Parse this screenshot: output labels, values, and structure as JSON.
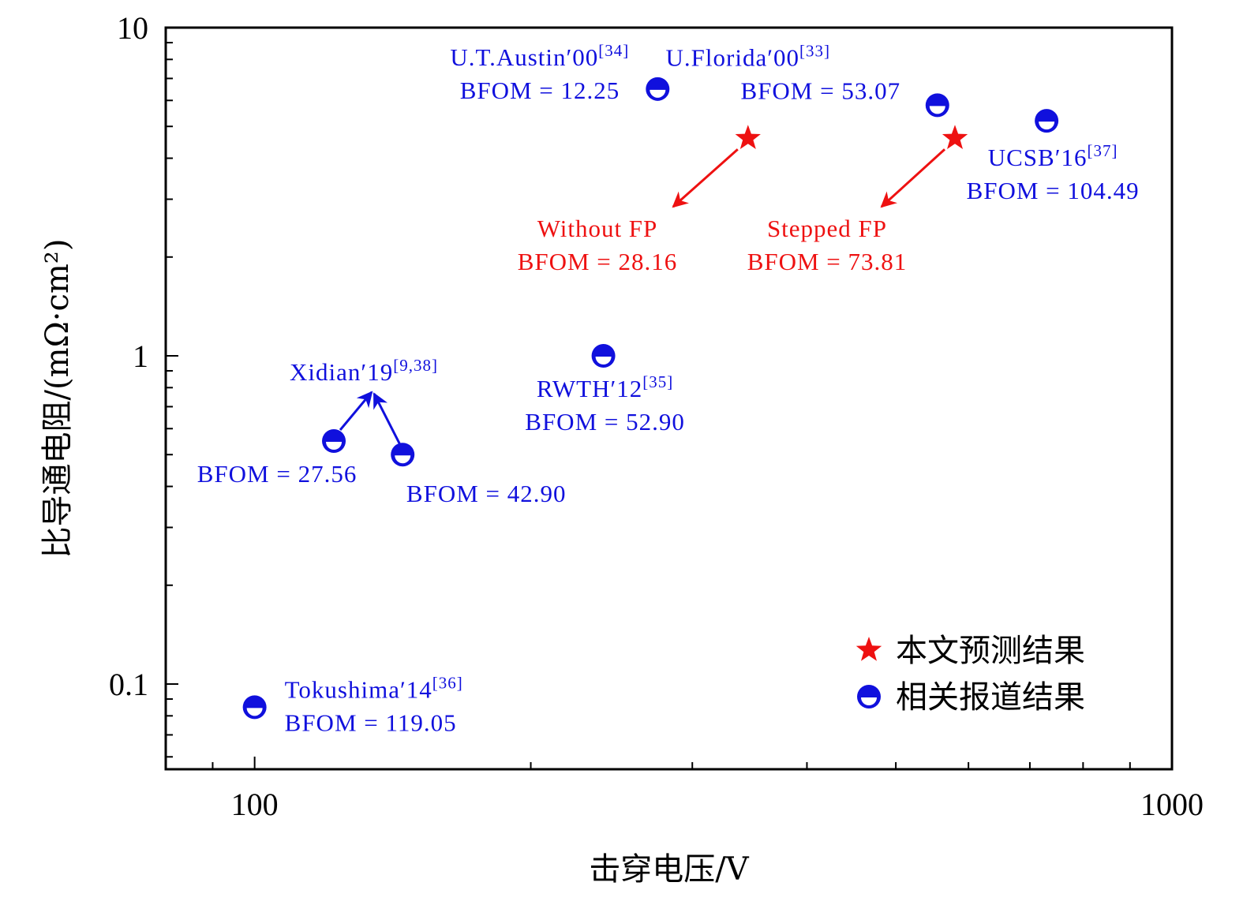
{
  "chart_data": {
    "type": "scatter",
    "xlabel": "击穿电压/V",
    "ylabel": "比导通电阻/(mΩ·cm²)",
    "x_scale": "log",
    "y_scale": "log",
    "xlim": [
      80,
      1000
    ],
    "ylim": [
      0.055,
      10
    ],
    "x_ticks": [
      {
        "value": 100,
        "label": "100"
      },
      {
        "value": 1000,
        "label": "1000"
      }
    ],
    "y_ticks": [
      {
        "value": 0.1,
        "label": "0.1"
      },
      {
        "value": 1,
        "label": "1"
      },
      {
        "value": 10,
        "label": "10"
      }
    ],
    "grid": false,
    "legend_position": "bottom-right",
    "series": [
      {
        "name": "本文预测结果",
        "marker": "star",
        "color": "#ee1111",
        "points": [
          {
            "x": 345,
            "y": 4.6,
            "label": "Without FP",
            "bfom": "BFOM = 28.16"
          },
          {
            "x": 580,
            "y": 4.6,
            "label": "Stepped FP",
            "bfom": "BFOM = 73.81"
          }
        ]
      },
      {
        "name": "相关报道结果",
        "marker": "half-filled-circle",
        "color": "#1010dd",
        "points": [
          {
            "x": 275,
            "y": 6.5,
            "label": "U.T.Austin′00",
            "ref": "[34]",
            "bfom": "BFOM = 12.25"
          },
          {
            "x": 555,
            "y": 5.8,
            "label": "U.Florida′00",
            "ref": "[33]",
            "bfom": "BFOM = 53.07"
          },
          {
            "x": 730,
            "y": 5.2,
            "label": "UCSB′16",
            "ref": "[37]",
            "bfom": "BFOM = 104.49"
          },
          {
            "x": 240,
            "y": 1.0,
            "label": "RWTH′12",
            "ref": "[35]",
            "bfom": "BFOM = 52.90"
          },
          {
            "x": 122,
            "y": 0.55,
            "label": "",
            "ref": "",
            "bfom": "BFOM = 27.56"
          },
          {
            "x": 145,
            "y": 0.5,
            "label": "",
            "ref": "",
            "bfom": "BFOM = 42.90"
          },
          {
            "x": 100,
            "y": 0.085,
            "label": "Tokushima′14",
            "ref": "[36]",
            "bfom": "BFOM = 119.05"
          }
        ]
      }
    ],
    "group_annotation": {
      "label": "Xidian′19",
      "ref": "[9,38]"
    }
  }
}
